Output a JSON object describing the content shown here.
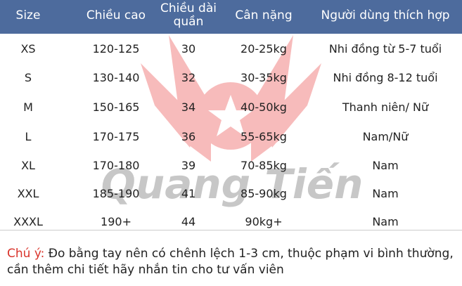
{
  "header": {
    "size": "Size",
    "height": "Chiều cao",
    "length_line1": "Chiều dài",
    "length_line2": "quần",
    "weight": "Cân nặng",
    "user": "Người dùng thích hợp"
  },
  "rows": [
    {
      "size": "XS",
      "height": "120-125",
      "length": "30",
      "weight": "20-25kg",
      "user": "Nhi đồng từ 5-7 tuổi"
    },
    {
      "size": "S",
      "height": "130-140",
      "length": "32",
      "weight": "30-35kg",
      "user": "Nhi đồng 8-12 tuổi"
    },
    {
      "size": "M",
      "height": "150-165",
      "length": "34",
      "weight": "40-50kg",
      "user": "Thanh niên/ Nữ"
    },
    {
      "size": "L",
      "height": "170-175",
      "length": "36",
      "weight": "55-65kg",
      "user": "Nam/Nữ"
    },
    {
      "size": "XL",
      "height": "170-180",
      "length": "39",
      "weight": "70-85kg",
      "user": "Nam"
    },
    {
      "size": "XXL",
      "height": "185-190",
      "length": "41",
      "weight": "85-90kg",
      "user": "Nam"
    },
    {
      "size": "XXXL",
      "height": "190+",
      "length": "44",
      "weight": "90kg+",
      "user": "Nam"
    }
  ],
  "watermark": "Quang Tiến",
  "note": {
    "label": "Chú ý:",
    "text": " Đo bằng tay nên có chênh lệch 1-3 cm, thuộc phạm vi bình thường, cần thêm chi tiết hãy nhắn tin cho tư vấn viên"
  },
  "colors": {
    "header": "#4d6b9d",
    "note_label": "#d9342b",
    "watermark_wings": "#f4a6a6"
  }
}
